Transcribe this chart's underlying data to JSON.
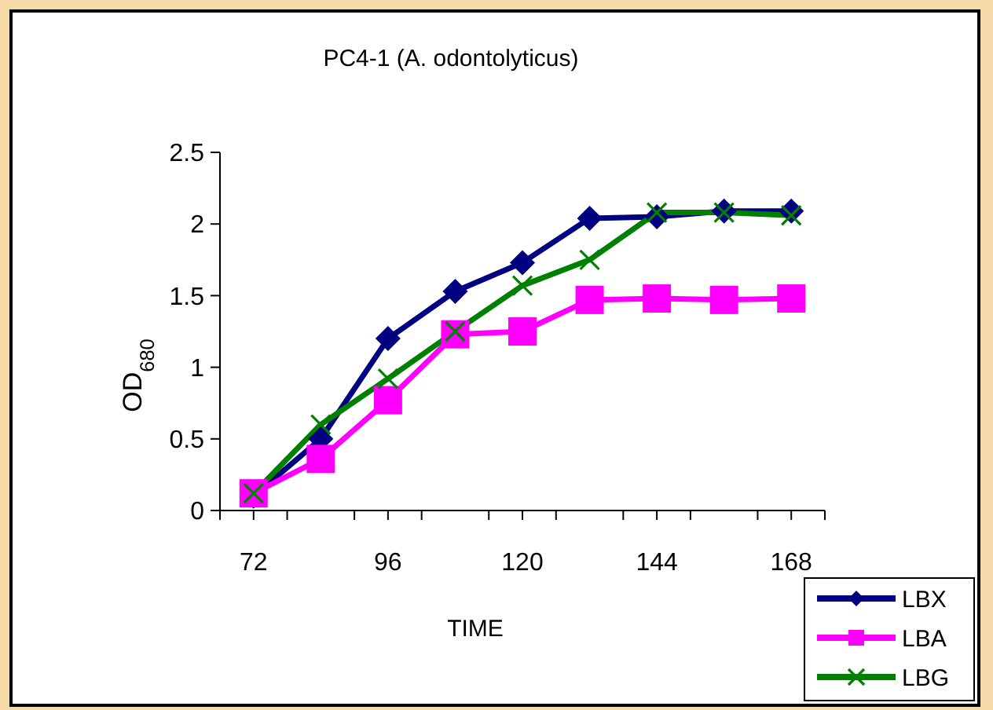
{
  "chart_data": {
    "type": "line",
    "title": "PC4-1 (A. odontolyticus)",
    "xlabel": "TIME",
    "ylabel": "OD$_{680}$",
    "x": [
      72,
      84,
      96,
      108,
      120,
      132,
      144,
      156,
      168
    ],
    "xlim": [
      66,
      174
    ],
    "xticks": [
      {
        "value": 66,
        "label": null
      },
      72,
      {
        "value": 78,
        "label": null
      },
      {
        "value": 90,
        "label": null
      },
      96,
      {
        "value": 102,
        "label": null
      },
      {
        "value": 114,
        "label": null
      },
      120,
      {
        "value": 126,
        "label": null
      },
      {
        "value": 138,
        "label": null
      },
      144,
      {
        "value": 150,
        "label": null
      },
      {
        "value": 162,
        "label": null
      },
      168,
      {
        "value": 174,
        "label": null
      }
    ],
    "ylim": [
      0,
      2.5
    ],
    "yticks": [
      0,
      0.5,
      1,
      1.5,
      2,
      2.5
    ],
    "grid": false,
    "legend": "bottom right",
    "series": [
      {
        "name": "LBX",
        "color": "#000080",
        "marker": "diamond",
        "values": [
          0.1,
          0.5,
          1.2,
          1.53,
          1.73,
          2.04,
          2.05,
          2.09,
          2.09
        ]
      },
      {
        "name": "LBA",
        "color": "#ff00ff",
        "marker": "square",
        "values": [
          0.12,
          0.36,
          0.77,
          1.23,
          1.25,
          1.47,
          1.48,
          1.47,
          1.48
        ]
      },
      {
        "name": "LBG",
        "color": "#008000",
        "marker": "cross",
        "values": [
          0.12,
          0.6,
          0.92,
          1.25,
          1.57,
          1.75,
          2.08,
          2.08,
          2.06
        ]
      }
    ]
  }
}
